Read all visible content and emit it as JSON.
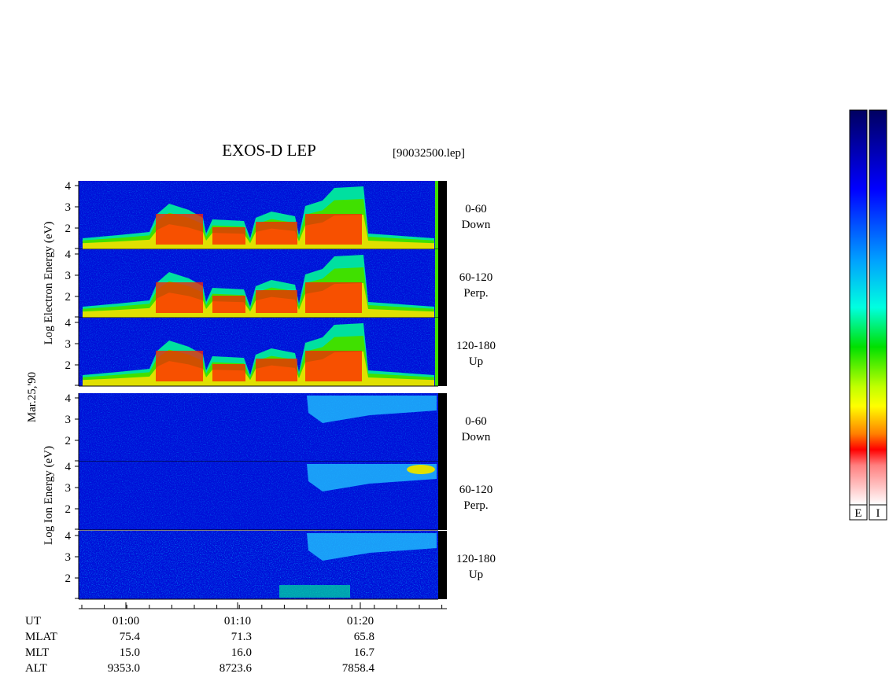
{
  "title": "EXOS-D LEP",
  "file": "[90032500.lep]",
  "date": "Mar.25,'90",
  "electron_label": "Log  Electron  Energy (eV)",
  "ion_label": "Log  Ion  Energy (eV)",
  "energy_ticks": [
    "4",
    "3",
    "2"
  ],
  "panels": [
    {
      "range": "0-60",
      "direction": "Down"
    },
    {
      "range": "60-120",
      "direction": "Perp."
    },
    {
      "range": "120-180",
      "direction": "Up"
    },
    {
      "range": "0-60",
      "direction": "Down"
    },
    {
      "range": "60-120",
      "direction": "Perp."
    },
    {
      "range": "120-180",
      "direction": "Up"
    }
  ],
  "time_ticks": [
    "01:00",
    "01:10",
    "01:20"
  ],
  "rows": [
    {
      "label": "UT"
    },
    {
      "label": "MLAT",
      "values": [
        "75.4",
        "71.3",
        "65.8"
      ]
    },
    {
      "label": "MLT",
      "values": [
        "15.0",
        "16.0",
        "16.7"
      ]
    },
    {
      "label": "ALT",
      "values": [
        "9353.0",
        "8723.6",
        "7858.4"
      ]
    }
  ],
  "colorbars": [
    "E",
    "I"
  ]
}
